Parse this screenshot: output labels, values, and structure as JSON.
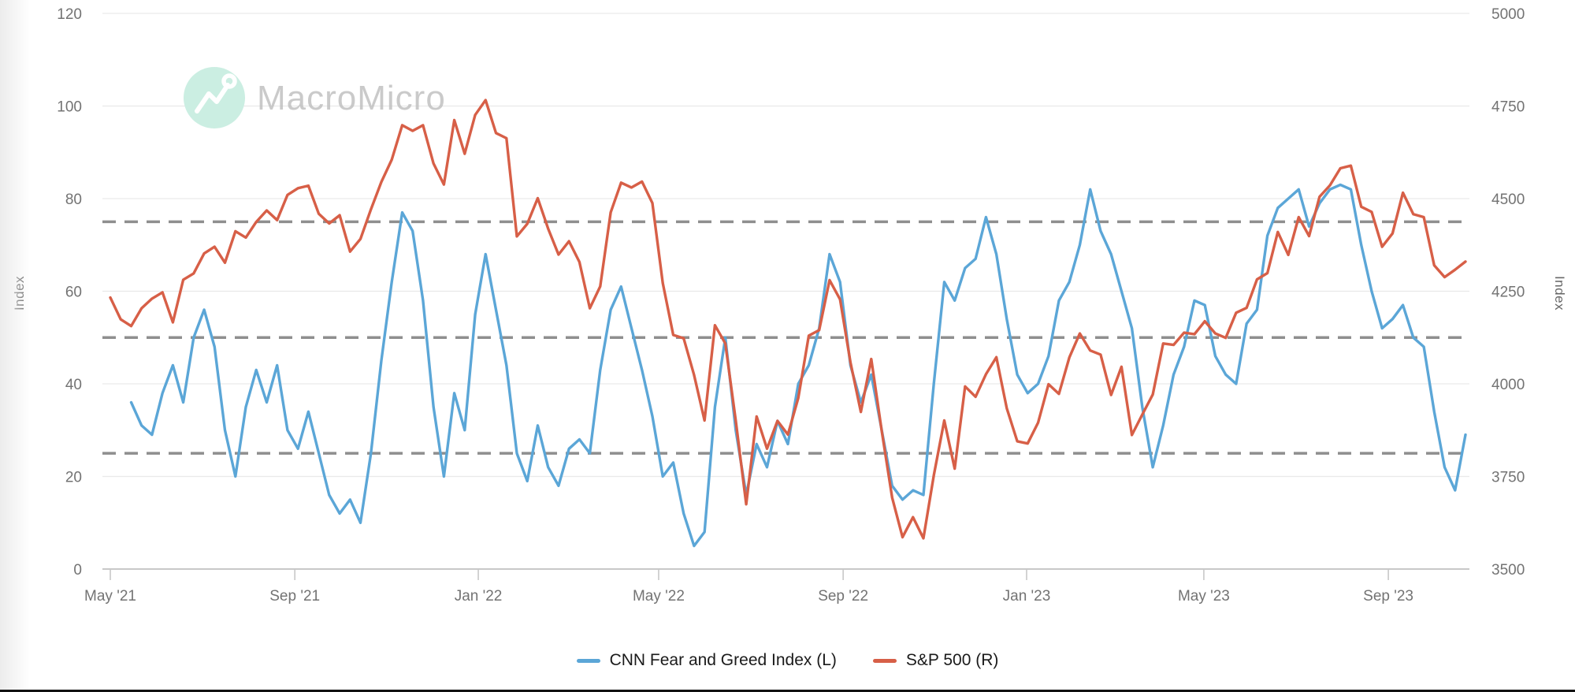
{
  "watermark": {
    "brand": "MacroMicro",
    "logo_icon": "trend-line-icon",
    "circle_color": "#cbeee2",
    "text_color": "#bdbdbd"
  },
  "colors": {
    "fear_greed_line": "#5BA6D7",
    "sp500_line": "#D75F47",
    "gridline": "#e9e9e9",
    "axis_line": "#c8c8c8",
    "dashed_threshold": "#8f8f8f",
    "tick_text": "#737373",
    "legend_text": "#1a1a1a"
  },
  "legend": {
    "items": [
      {
        "label": "CNN Fear and Greed Index (L)",
        "color": "#5BA6D7"
      },
      {
        "label": "S&P 500 (R)",
        "color": "#D75F47"
      }
    ]
  },
  "chart_data": {
    "type": "line",
    "x_unit": "weekly observations, May 2021 - Oct 2023",
    "x_tick_labels": [
      "May '21",
      "Sep '21",
      "Jan '22",
      "May '22",
      "Sep '22",
      "Jan '23",
      "May '23",
      "Sep '23"
    ],
    "x_tick_week_positions": [
      0,
      17.7,
      35.3,
      52.6,
      70.3,
      87.9,
      104.9,
      122.6
    ],
    "left_axis": {
      "label": "Index",
      "min": 0,
      "max": 120,
      "ticks": [
        0,
        20,
        40,
        60,
        80,
        100,
        120
      ]
    },
    "right_axis": {
      "label": "Index",
      "min": 3500,
      "max": 5000,
      "ticks": [
        3500,
        3750,
        4000,
        4250,
        4500,
        4750,
        5000
      ]
    },
    "threshold_lines_left_axis": [
      25,
      50,
      75
    ],
    "grid": true,
    "legend_position": "bottom",
    "series": [
      {
        "name": "CNN Fear and Greed Index (L)",
        "axis": "left",
        "color": "#5BA6D7",
        "values": [
          null,
          null,
          36,
          31,
          29,
          38,
          44,
          36,
          50,
          56,
          48,
          30,
          20,
          35,
          43,
          36,
          44,
          30,
          26,
          34,
          25,
          16,
          12,
          15,
          10,
          25,
          45,
          62,
          77,
          73,
          58,
          35,
          20,
          38,
          30,
          55,
          68,
          56,
          44,
          25,
          19,
          31,
          22,
          18,
          26,
          28,
          25,
          43,
          56,
          61,
          52,
          43,
          33,
          20,
          23,
          12,
          5,
          8,
          35,
          50,
          30,
          16,
          27,
          22,
          32,
          27,
          40,
          44,
          52,
          68,
          62,
          44,
          36,
          42,
          30,
          18,
          15,
          17,
          16,
          40,
          62,
          58,
          65,
          67,
          76,
          68,
          54,
          42,
          38,
          40,
          46,
          58,
          62,
          70,
          82,
          73,
          68,
          60,
          52,
          35,
          22,
          31,
          42,
          48,
          58,
          57,
          46,
          42,
          40,
          53,
          56,
          72,
          78,
          80,
          82,
          74,
          79,
          82,
          83,
          82,
          70,
          60,
          52,
          54,
          57,
          50,
          48,
          34,
          22,
          17,
          29
        ]
      },
      {
        "name": "S&P 500 (R)",
        "axis": "right",
        "color": "#D75F47",
        "values": [
          4233,
          4174,
          4156,
          4204,
          4230,
          4247,
          4166,
          4281,
          4298,
          4352,
          4370,
          4327,
          4412,
          4395,
          4437,
          4468,
          4442,
          4510,
          4528,
          4535,
          4459,
          4433,
          4455,
          4357,
          4391,
          4471,
          4545,
          4605,
          4698,
          4683,
          4698,
          4595,
          4538,
          4712,
          4621,
          4726,
          4766,
          4677,
          4663,
          4398,
          4432,
          4501,
          4419,
          4349,
          4385,
          4329,
          4204,
          4263,
          4463,
          4543,
          4530,
          4546,
          4488,
          4272,
          4132,
          4123,
          4024,
          3901,
          4158,
          4109,
          3901,
          3675,
          3912,
          3825,
          3900,
          3863,
          3962,
          4130,
          4145,
          4280,
          4228,
          4058,
          3924,
          4067,
          3873,
          3693,
          3586,
          3640,
          3583,
          3753,
          3901,
          3771,
          3993,
          3965,
          4026,
          4072,
          3934,
          3845,
          3839,
          3895,
          3999,
          3973,
          4071,
          4136,
          4090,
          4079,
          3970,
          4046,
          3862,
          3917,
          3971,
          4109,
          4105,
          4138,
          4134,
          4169,
          4136,
          4124,
          4192,
          4205,
          4282,
          4299,
          4410,
          4348,
          4450,
          4399,
          4505,
          4536,
          4582,
          4589,
          4478,
          4464,
          4370,
          4406,
          4516,
          4458,
          4450,
          4320,
          4288,
          4308,
          4330
        ]
      }
    ]
  }
}
